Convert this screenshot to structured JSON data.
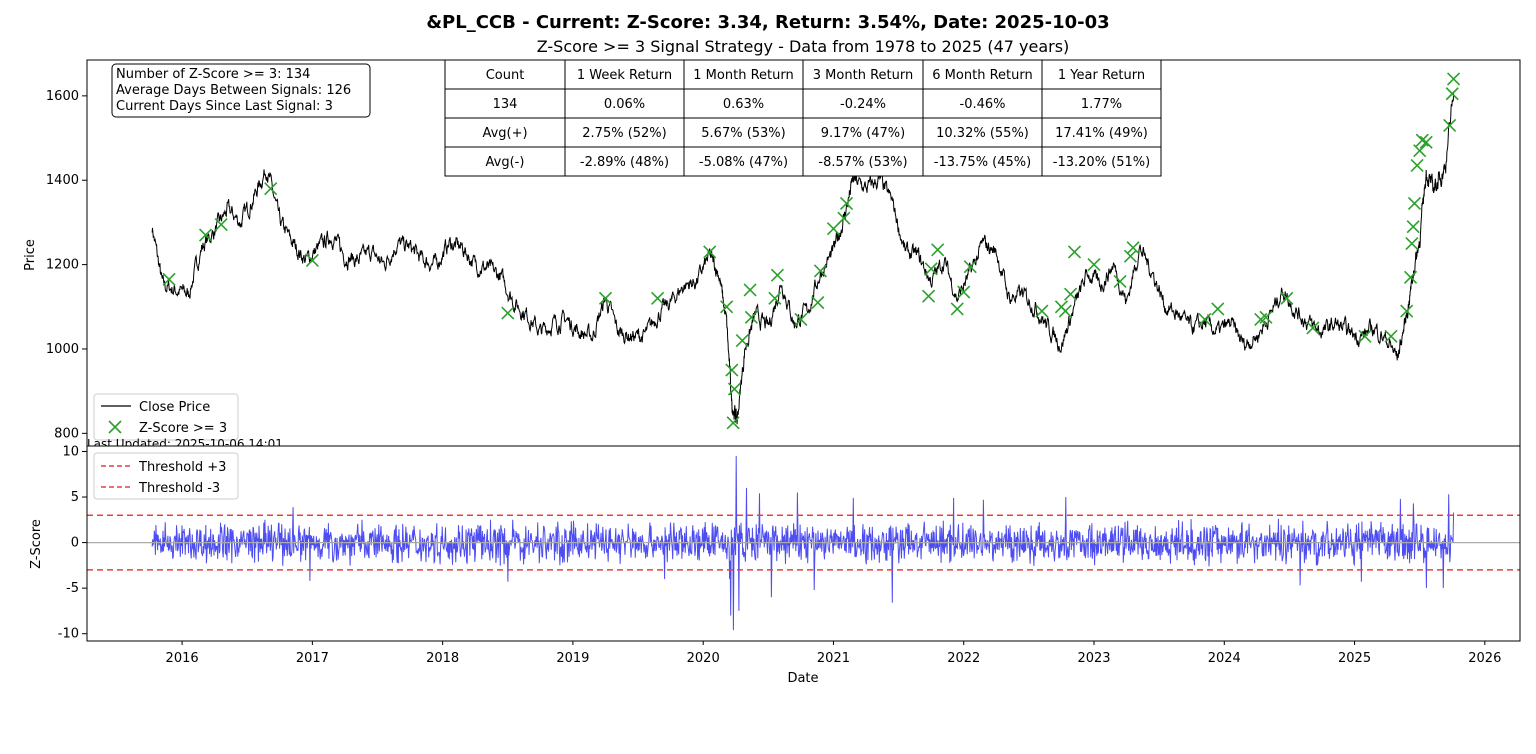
{
  "title": "&PL_CCB - Current: Z-Score: 3.34, Return: 3.54%, Date: 2025-10-03",
  "subtitle": "Z-Score >= 3 Signal Strategy - Data from 1978 to 2025 (47 years)",
  "last_updated": "Last Updated: 2025-10-06 14:01",
  "info_box": [
    "Number of Z-Score >= 3: 134",
    "Average Days Between Signals: 126",
    "Current Days Since Last Signal: 3"
  ],
  "stats_table": {
    "header": [
      "Count",
      "1 Week Return",
      "1 Month Return",
      "3 Month Return",
      "6 Month Return",
      "1 Year Return"
    ],
    "rows": [
      [
        "134",
        "0.06%",
        "0.63%",
        "-0.24%",
        "-0.46%",
        "1.77%"
      ],
      [
        "Avg(+)",
        "2.75% (52%)",
        "5.67% (53%)",
        "9.17% (47%)",
        "10.32% (55%)",
        "17.41% (49%)"
      ],
      [
        "Avg(-)",
        "-2.89% (48%)",
        "-5.08% (47%)",
        "-8.57% (53%)",
        "-13.75% (45%)",
        "-13.20% (51%)"
      ]
    ]
  },
  "colors": {
    "price": "#000000",
    "signal": "#2ca02c",
    "zscore": "#3a3af0",
    "threshold": "#e8413f",
    "zero": "#aaaaaa"
  },
  "chart_data": [
    {
      "type": "line",
      "panel": "price",
      "ylabel": "Price",
      "xlabel": "",
      "ylim": [
        770,
        1685
      ],
      "xlim": [
        2015.27,
        2026.27
      ],
      "yticks": [
        800,
        1000,
        1200,
        1400,
        1600
      ],
      "xticks": [
        2016,
        2017,
        2018,
        2019,
        2020,
        2021,
        2022,
        2023,
        2024,
        2025,
        2026
      ],
      "legend_position": "lower-left",
      "legend": [
        "Close Price",
        "Z-Score >= 3"
      ],
      "series": [
        {
          "name": "Close Price",
          "x": [
            2015.77,
            2015.85,
            2015.95,
            2016.05,
            2016.15,
            2016.25,
            2016.35,
            2016.45,
            2016.55,
            2016.65,
            2016.75,
            2016.85,
            2016.95,
            2017.05,
            2017.15,
            2017.25,
            2017.35,
            2017.45,
            2017.55,
            2017.65,
            2017.75,
            2017.85,
            2017.95,
            2018.05,
            2018.15,
            2018.25,
            2018.35,
            2018.45,
            2018.55,
            2018.65,
            2018.75,
            2018.85,
            2018.95,
            2019.05,
            2019.15,
            2019.25,
            2019.35,
            2019.45,
            2019.55,
            2019.65,
            2019.75,
            2019.85,
            2019.95,
            2020.05,
            2020.12,
            2020.18,
            2020.22,
            2020.26,
            2020.32,
            2020.4,
            2020.5,
            2020.6,
            2020.7,
            2020.8,
            2020.9,
            2021.0,
            2021.08,
            2021.15,
            2021.25,
            2021.35,
            2021.45,
            2021.55,
            2021.65,
            2021.75,
            2021.85,
            2021.95,
            2022.05,
            2022.15,
            2022.25,
            2022.35,
            2022.45,
            2022.55,
            2022.65,
            2022.75,
            2022.85,
            2022.95,
            2023.05,
            2023.15,
            2023.25,
            2023.35,
            2023.45,
            2023.55,
            2023.65,
            2023.75,
            2023.85,
            2023.95,
            2024.05,
            2024.15,
            2024.25,
            2024.35,
            2024.45,
            2024.55,
            2024.65,
            2024.75,
            2024.85,
            2024.95,
            2025.05,
            2025.15,
            2025.25,
            2025.33,
            2025.4,
            2025.45,
            2025.5,
            2025.55,
            2025.6,
            2025.65,
            2025.7,
            2025.76
          ],
          "values": [
            1290,
            1150,
            1140,
            1130,
            1240,
            1280,
            1330,
            1300,
            1360,
            1430,
            1300,
            1250,
            1210,
            1240,
            1270,
            1220,
            1210,
            1230,
            1200,
            1250,
            1240,
            1210,
            1200,
            1250,
            1240,
            1200,
            1190,
            1170,
            1110,
            1080,
            1040,
            1060,
            1070,
            1040,
            1030,
            1120,
            1040,
            1030,
            1030,
            1080,
            1110,
            1150,
            1160,
            1220,
            1180,
            1060,
            870,
            830,
            1000,
            1080,
            1050,
            1160,
            1060,
            1090,
            1180,
            1230,
            1310,
            1400,
            1380,
            1400,
            1350,
            1230,
            1220,
            1160,
            1210,
            1120,
            1180,
            1250,
            1230,
            1120,
            1130,
            1100,
            1050,
            1010,
            1100,
            1180,
            1150,
            1200,
            1110,
            1240,
            1180,
            1100,
            1080,
            1050,
            1060,
            1040,
            1060,
            1010,
            1030,
            1080,
            1140,
            1090,
            1060,
            1040,
            1060,
            1040,
            1030,
            1050,
            1020,
            980,
            1080,
            1180,
            1260,
            1420,
            1380,
            1400,
            1440,
            1610
          ]
        },
        {
          "name": "Z-Score >= 3",
          "type": "scatter",
          "x": [
            2015.9,
            2016.18,
            2016.3,
            2016.68,
            2017.0,
            2018.5,
            2019.25,
            2019.65,
            2020.05,
            2020.18,
            2020.22,
            2020.23,
            2020.24,
            2020.3,
            2020.36,
            2020.37,
            2020.55,
            2020.57,
            2020.75,
            2020.88,
            2020.9,
            2021.0,
            2021.08,
            2021.1,
            2021.12,
            2021.73,
            2021.75,
            2021.8,
            2021.95,
            2022.0,
            2022.05,
            2022.6,
            2022.75,
            2022.78,
            2022.82,
            2022.85,
            2023.0,
            2023.2,
            2023.28,
            2023.3,
            2023.85,
            2023.95,
            2024.28,
            2024.32,
            2024.48,
            2024.68,
            2025.08,
            2025.28,
            2025.4,
            2025.43,
            2025.44,
            2025.45,
            2025.46,
            2025.48,
            2025.5,
            2025.52,
            2025.55,
            2025.73,
            2025.75,
            2025.76
          ],
          "values": [
            1165,
            1270,
            1295,
            1380,
            1210,
            1085,
            1120,
            1120,
            1230,
            1100,
            950,
            825,
            905,
            1020,
            1140,
            1075,
            1120,
            1175,
            1070,
            1110,
            1185,
            1285,
            1310,
            1345,
            1425,
            1125,
            1190,
            1235,
            1095,
            1135,
            1195,
            1090,
            1100,
            1090,
            1130,
            1230,
            1200,
            1160,
            1220,
            1240,
            1070,
            1095,
            1070,
            1075,
            1120,
            1050,
            1030,
            1030,
            1090,
            1170,
            1250,
            1290,
            1345,
            1435,
            1470,
            1495,
            1490,
            1530,
            1605,
            1640
          ]
        }
      ]
    },
    {
      "type": "line",
      "panel": "zscore",
      "ylabel": "Z-Score",
      "xlabel": "Date",
      "ylim": [
        -10.8,
        10.6
      ],
      "xlim": [
        2015.27,
        2026.27
      ],
      "yticks": [
        -10,
        -5,
        0,
        5,
        10
      ],
      "xticks": [
        2016,
        2017,
        2018,
        2019,
        2020,
        2021,
        2022,
        2023,
        2024,
        2025,
        2026
      ],
      "legend_position": "top-left",
      "legend": [
        "Threshold +3",
        "Threshold -3"
      ],
      "thresholds": [
        3,
        -3
      ],
      "series": [
        {
          "name": "",
          "start": 2015.77,
          "end": 2025.76,
          "typical_amplitude": 1.8,
          "spikes": [
            {
              "x": 2016.85,
              "value": 3.9
            },
            {
              "x": 2016.98,
              "value": -4.2
            },
            {
              "x": 2018.5,
              "value": -4.3
            },
            {
              "x": 2019.7,
              "value": -4.0
            },
            {
              "x": 2020.2,
              "value": -4.0
            },
            {
              "x": 2020.21,
              "value": -8.0
            },
            {
              "x": 2020.23,
              "value": -9.6
            },
            {
              "x": 2020.25,
              "value": 9.5
            },
            {
              "x": 2020.27,
              "value": -7.5
            },
            {
              "x": 2020.33,
              "value": 6.0
            },
            {
              "x": 2020.43,
              "value": 5.4
            },
            {
              "x": 2020.52,
              "value": -6.0
            },
            {
              "x": 2020.72,
              "value": 5.5
            },
            {
              "x": 2020.85,
              "value": -5.2
            },
            {
              "x": 2021.15,
              "value": 4.9
            },
            {
              "x": 2021.45,
              "value": -6.6
            },
            {
              "x": 2021.92,
              "value": 4.9
            },
            {
              "x": 2022.15,
              "value": 4.7
            },
            {
              "x": 2022.78,
              "value": 5.0
            },
            {
              "x": 2024.58,
              "value": -4.7
            },
            {
              "x": 2025.05,
              "value": -4.3
            },
            {
              "x": 2025.35,
              "value": 4.8
            },
            {
              "x": 2025.45,
              "value": 4.3
            },
            {
              "x": 2025.55,
              "value": -5.0
            },
            {
              "x": 2025.68,
              "value": -5.0
            },
            {
              "x": 2025.72,
              "value": 5.3
            },
            {
              "x": 2025.76,
              "value": 3.3
            }
          ]
        }
      ]
    }
  ]
}
